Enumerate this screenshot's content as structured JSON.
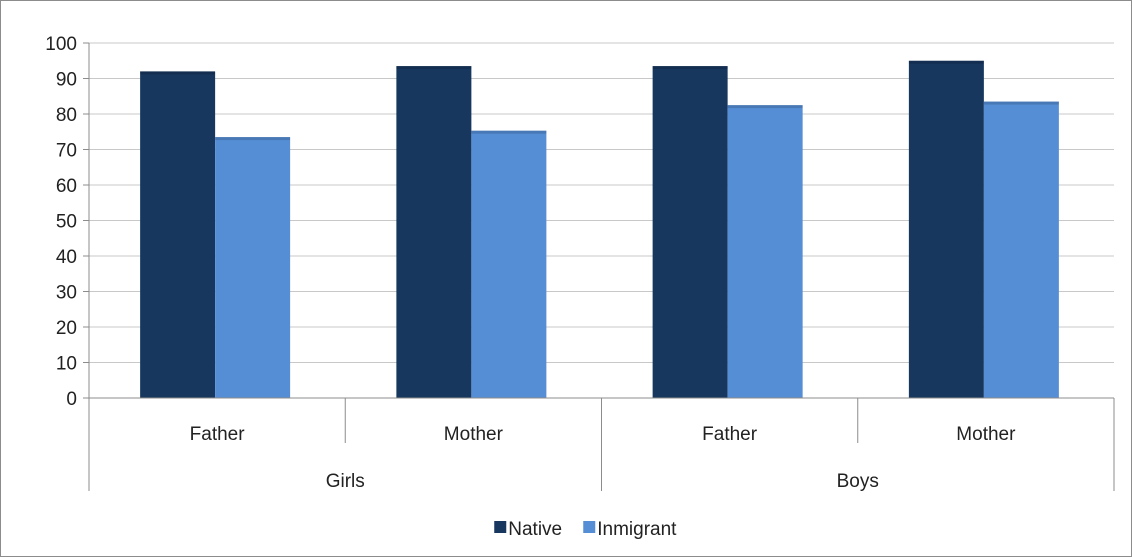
{
  "chart_data": {
    "type": "bar",
    "title": "",
    "xlabel": "",
    "ylabel": "",
    "ylim": [
      0,
      100
    ],
    "yticks": [
      0,
      10,
      20,
      30,
      40,
      50,
      60,
      70,
      80,
      90,
      100
    ],
    "grid": true,
    "legend_position": "bottom",
    "groups": [
      {
        "label": "Girls",
        "categories": [
          "Father",
          "Mother"
        ]
      },
      {
        "label": "Boys",
        "categories": [
          "Father",
          "Mother"
        ]
      }
    ],
    "series": [
      {
        "name": "Native",
        "color": "#17375e",
        "values": [
          92,
          93.5,
          93.5,
          95
        ]
      },
      {
        "name": "Inmigrant",
        "color": "#558ed5",
        "values": [
          73.5,
          75.3,
          82.5,
          83.5
        ]
      }
    ]
  }
}
